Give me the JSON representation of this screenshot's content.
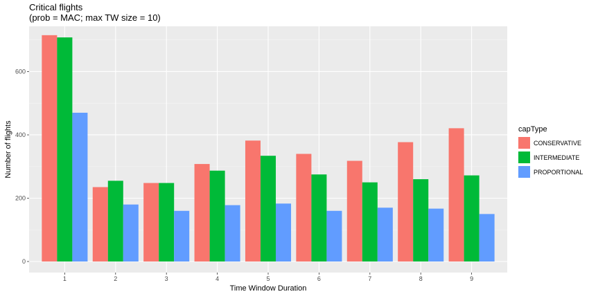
{
  "chart_data": {
    "type": "bar",
    "title": "Critical flights",
    "subtitle": "(prob = MAC; max TW size = 10)",
    "xlabel": "Time Window Duration",
    "ylabel": "Number of flights",
    "categories": [
      "1",
      "2",
      "3",
      "4",
      "5",
      "6",
      "7",
      "8",
      "9"
    ],
    "ylim": [
      0,
      730
    ],
    "yticks": [
      0,
      200,
      400,
      600
    ],
    "ytick_labels": [
      "0",
      "200",
      "400",
      "600"
    ],
    "grid": true,
    "legend_title": "capType",
    "legend_position": "right",
    "series": [
      {
        "name": "CONSERVATIVE",
        "color": "#F8766D",
        "values": [
          715,
          235,
          248,
          308,
          382,
          340,
          318,
          377,
          421
        ]
      },
      {
        "name": "INTERMEDIATE",
        "color": "#00BA38",
        "values": [
          708,
          255,
          248,
          287,
          334,
          275,
          250,
          260,
          272
        ]
      },
      {
        "name": "PROPORTIONAL",
        "color": "#619CFF",
        "values": [
          470,
          180,
          160,
          178,
          183,
          160,
          170,
          167,
          150
        ]
      }
    ]
  }
}
